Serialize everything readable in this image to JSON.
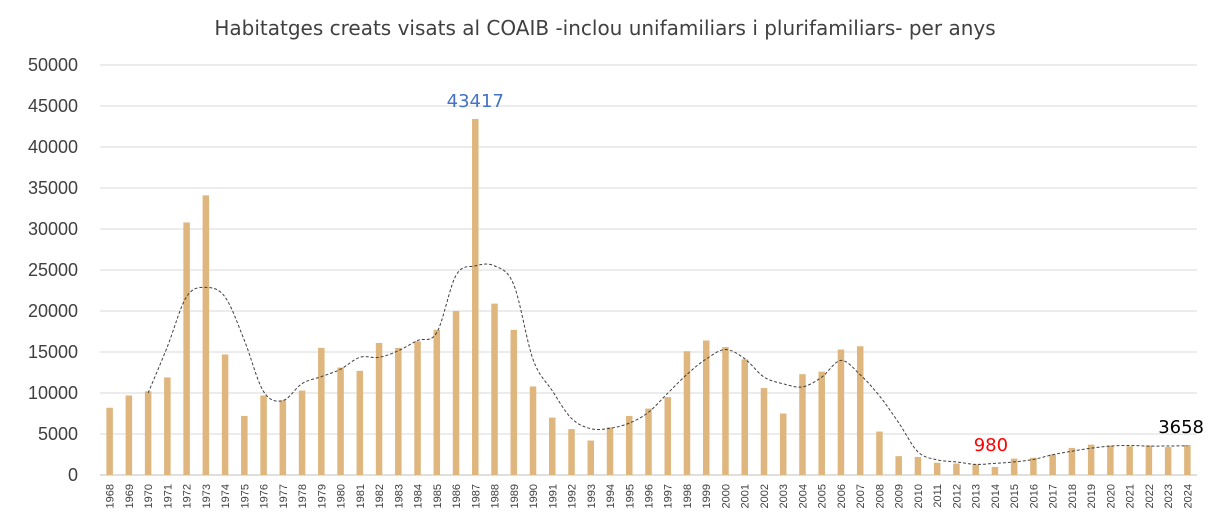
{
  "chart_data": {
    "type": "bar",
    "title": "Habitatges creats visats al COAIB -inclou unifamiliars i plurifamiliars- per anys",
    "xlabel": "",
    "ylabel": "",
    "ylim": [
      0,
      50000
    ],
    "yticks": [
      0,
      5000,
      10000,
      15000,
      20000,
      25000,
      30000,
      35000,
      40000,
      45000,
      50000
    ],
    "grid": true,
    "legend": "none",
    "bar_color": "#DEB67E",
    "trendline": {
      "type": "moving-average",
      "style": "dashed",
      "color": "#404040"
    },
    "categories": [
      "1968",
      "1969",
      "1970",
      "1971",
      "1972",
      "1973",
      "1974",
      "1975",
      "1976",
      "1977",
      "1978",
      "1979",
      "1980",
      "1981",
      "1982",
      "1983",
      "1984",
      "1985",
      "1986",
      "1987",
      "1988",
      "1989",
      "1990",
      "1991",
      "1992",
      "1993",
      "1994",
      "1995",
      "1996",
      "1997",
      "1998",
      "1999",
      "2000",
      "2001",
      "2002",
      "2003",
      "2004",
      "2005",
      "2006",
      "2007",
      "2008",
      "2009",
      "2010",
      "2011",
      "2012",
      "2013",
      "2014",
      "2015",
      "2016",
      "2017",
      "2018",
      "2019",
      "2020",
      "2021",
      "2022",
      "2023",
      "2024"
    ],
    "values": [
      8200,
      9700,
      10200,
      11900,
      30800,
      34100,
      14700,
      7200,
      9700,
      9100,
      10300,
      15500,
      13100,
      12700,
      16100,
      15500,
      16300,
      17700,
      20000,
      43417,
      20900,
      17700,
      10800,
      7000,
      5600,
      4200,
      5800,
      7200,
      8100,
      9500,
      15100,
      16400,
      15600,
      14100,
      10600,
      7500,
      12300,
      12600,
      15300,
      15700,
      5300,
      2300,
      2200,
      1500,
      1400,
      1300,
      980,
      2000,
      2100,
      2500,
      3300,
      3700,
      3600,
      3500,
      3600,
      3400,
      3658
    ],
    "annotations": [
      {
        "category": "1987",
        "text": "43417",
        "color": "#4472C4"
      },
      {
        "category": "2014",
        "text": "980",
        "color": "#FF0000"
      },
      {
        "category": "2024",
        "text": "3658",
        "color": "#000000"
      }
    ]
  }
}
